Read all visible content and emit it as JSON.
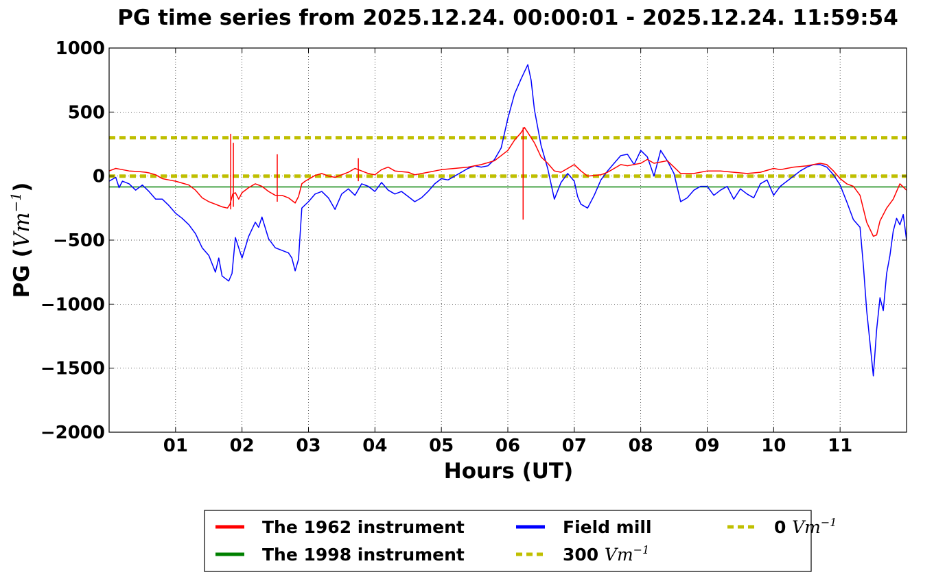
{
  "chart_data": {
    "type": "line",
    "title": "PG time series from 2025.12.24. 00:00:01 - 2025.12.24. 11:59:54",
    "xlabel": "Hours (UT)",
    "ylabel_main": "PG (",
    "ylabel_unit": "Vm",
    "ylabel_exp": "−1",
    "ylabel_close": ")",
    "xlim": [
      0,
      12
    ],
    "ylim": [
      -2000,
      1000
    ],
    "grid": true,
    "legend_position": "bottom-center, below plot",
    "x_ticks": [
      {
        "value": 1,
        "label": "01"
      },
      {
        "value": 2,
        "label": "02"
      },
      {
        "value": 3,
        "label": "03"
      },
      {
        "value": 4,
        "label": "04"
      },
      {
        "value": 5,
        "label": "05"
      },
      {
        "value": 6,
        "label": "06"
      },
      {
        "value": 7,
        "label": "07"
      },
      {
        "value": 8,
        "label": "08"
      },
      {
        "value": 9,
        "label": "09"
      },
      {
        "value": 10,
        "label": "10"
      },
      {
        "value": 11,
        "label": "11"
      }
    ],
    "y_ticks": [
      {
        "value": 1000,
        "label": "1000"
      },
      {
        "value": 500,
        "label": "500"
      },
      {
        "value": 0,
        "label": "0"
      },
      {
        "value": -500,
        "label": "−500"
      },
      {
        "value": -1000,
        "label": "−1000"
      },
      {
        "value": -1500,
        "label": "−1500"
      },
      {
        "value": -2000,
        "label": "−2000"
      }
    ],
    "series": [
      {
        "name": "The 1962 instrument",
        "color": "#ff0000",
        "style": "solid",
        "points": [
          [
            0.0,
            40
          ],
          [
            0.1,
            60
          ],
          [
            0.2,
            50
          ],
          [
            0.3,
            40
          ],
          [
            0.45,
            35
          ],
          [
            0.55,
            30
          ],
          [
            0.6,
            25
          ],
          [
            0.7,
            10
          ],
          [
            0.8,
            -20
          ],
          [
            0.9,
            -30
          ],
          [
            1.0,
            -40
          ],
          [
            1.1,
            -55
          ],
          [
            1.2,
            -70
          ],
          [
            1.3,
            -110
          ],
          [
            1.4,
            -170
          ],
          [
            1.5,
            -200
          ],
          [
            1.6,
            -220
          ],
          [
            1.7,
            -240
          ],
          [
            1.78,
            -250
          ],
          [
            1.82,
            -220
          ],
          [
            1.86,
            -140
          ],
          [
            1.9,
            -130
          ],
          [
            1.95,
            -180
          ],
          [
            2.0,
            -130
          ],
          [
            2.1,
            -90
          ],
          [
            2.2,
            -60
          ],
          [
            2.3,
            -80
          ],
          [
            2.4,
            -120
          ],
          [
            2.5,
            -150
          ],
          [
            2.6,
            -150
          ],
          [
            2.7,
            -170
          ],
          [
            2.8,
            -210
          ],
          [
            2.85,
            -160
          ],
          [
            2.9,
            -60
          ],
          [
            2.95,
            -40
          ],
          [
            3.1,
            5
          ],
          [
            3.2,
            20
          ],
          [
            3.3,
            0
          ],
          [
            3.4,
            -10
          ],
          [
            3.5,
            10
          ],
          [
            3.6,
            30
          ],
          [
            3.7,
            60
          ],
          [
            3.8,
            40
          ],
          [
            3.9,
            20
          ],
          [
            4.0,
            10
          ],
          [
            4.1,
            50
          ],
          [
            4.2,
            70
          ],
          [
            4.3,
            40
          ],
          [
            4.5,
            30
          ],
          [
            4.6,
            10
          ],
          [
            4.8,
            30
          ],
          [
            5.0,
            50
          ],
          [
            5.2,
            60
          ],
          [
            5.4,
            70
          ],
          [
            5.6,
            90
          ],
          [
            5.8,
            120
          ],
          [
            6.0,
            200
          ],
          [
            6.1,
            280
          ],
          [
            6.2,
            340
          ],
          [
            6.25,
            380
          ],
          [
            6.3,
            340
          ],
          [
            6.4,
            260
          ],
          [
            6.5,
            150
          ],
          [
            6.6,
            100
          ],
          [
            6.7,
            40
          ],
          [
            6.8,
            30
          ],
          [
            6.9,
            60
          ],
          [
            7.0,
            90
          ],
          [
            7.1,
            40
          ],
          [
            7.2,
            0
          ],
          [
            7.4,
            10
          ],
          [
            7.5,
            30
          ],
          [
            7.7,
            90
          ],
          [
            7.8,
            80
          ],
          [
            8.0,
            100
          ],
          [
            8.1,
            130
          ],
          [
            8.2,
            100
          ],
          [
            8.4,
            120
          ],
          [
            8.5,
            70
          ],
          [
            8.6,
            20
          ],
          [
            8.8,
            20
          ],
          [
            9.0,
            40
          ],
          [
            9.2,
            40
          ],
          [
            9.4,
            30
          ],
          [
            9.6,
            20
          ],
          [
            9.8,
            30
          ],
          [
            10.0,
            60
          ],
          [
            10.1,
            50
          ],
          [
            10.3,
            70
          ],
          [
            10.5,
            80
          ],
          [
            10.7,
            100
          ],
          [
            10.8,
            90
          ],
          [
            10.9,
            40
          ],
          [
            11.0,
            -20
          ],
          [
            11.1,
            -60
          ],
          [
            11.2,
            -80
          ],
          [
            11.3,
            -150
          ],
          [
            11.4,
            -360
          ],
          [
            11.5,
            -470
          ],
          [
            11.55,
            -460
          ],
          [
            11.6,
            -350
          ],
          [
            11.7,
            -250
          ],
          [
            11.8,
            -180
          ],
          [
            11.9,
            -60
          ],
          [
            12.0,
            -110
          ]
        ],
        "spikes": [
          [
            1.83,
            -260,
            330
          ],
          [
            1.87,
            -240,
            260
          ],
          [
            2.53,
            -200,
            170
          ],
          [
            3.75,
            -40,
            140
          ],
          [
            6.23,
            -340,
            380
          ]
        ]
      },
      {
        "name": "The 1998 instrument",
        "color": "#008000",
        "style": "solid",
        "points": [
          [
            0,
            -85
          ],
          [
            12,
            -85
          ]
        ]
      },
      {
        "name": "Field mill",
        "color": "#0000ff",
        "style": "solid",
        "points": [
          [
            0.0,
            -40
          ],
          [
            0.1,
            -10
          ],
          [
            0.15,
            -90
          ],
          [
            0.2,
            -40
          ],
          [
            0.3,
            -60
          ],
          [
            0.4,
            -110
          ],
          [
            0.5,
            -70
          ],
          [
            0.6,
            -120
          ],
          [
            0.7,
            -180
          ],
          [
            0.8,
            -180
          ],
          [
            0.9,
            -230
          ],
          [
            1.0,
            -290
          ],
          [
            1.1,
            -330
          ],
          [
            1.2,
            -380
          ],
          [
            1.3,
            -450
          ],
          [
            1.4,
            -560
          ],
          [
            1.5,
            -620
          ],
          [
            1.6,
            -750
          ],
          [
            1.65,
            -640
          ],
          [
            1.7,
            -780
          ],
          [
            1.8,
            -820
          ],
          [
            1.85,
            -760
          ],
          [
            1.9,
            -480
          ],
          [
            2.0,
            -640
          ],
          [
            2.1,
            -470
          ],
          [
            2.2,
            -360
          ],
          [
            2.25,
            -400
          ],
          [
            2.3,
            -320
          ],
          [
            2.4,
            -490
          ],
          [
            2.5,
            -560
          ],
          [
            2.6,
            -580
          ],
          [
            2.7,
            -600
          ],
          [
            2.75,
            -640
          ],
          [
            2.8,
            -740
          ],
          [
            2.85,
            -650
          ],
          [
            2.9,
            -250
          ],
          [
            3.0,
            -200
          ],
          [
            3.1,
            -140
          ],
          [
            3.2,
            -120
          ],
          [
            3.3,
            -170
          ],
          [
            3.4,
            -260
          ],
          [
            3.5,
            -140
          ],
          [
            3.6,
            -100
          ],
          [
            3.7,
            -150
          ],
          [
            3.8,
            -60
          ],
          [
            3.9,
            -80
          ],
          [
            4.0,
            -120
          ],
          [
            4.1,
            -50
          ],
          [
            4.2,
            -110
          ],
          [
            4.3,
            -140
          ],
          [
            4.4,
            -120
          ],
          [
            4.5,
            -160
          ],
          [
            4.6,
            -200
          ],
          [
            4.7,
            -170
          ],
          [
            4.8,
            -120
          ],
          [
            4.9,
            -60
          ],
          [
            5.0,
            -20
          ],
          [
            5.1,
            -30
          ],
          [
            5.2,
            0
          ],
          [
            5.3,
            30
          ],
          [
            5.4,
            60
          ],
          [
            5.5,
            80
          ],
          [
            5.6,
            70
          ],
          [
            5.7,
            80
          ],
          [
            5.8,
            130
          ],
          [
            5.9,
            220
          ],
          [
            6.0,
            450
          ],
          [
            6.1,
            640
          ],
          [
            6.2,
            760
          ],
          [
            6.3,
            870
          ],
          [
            6.35,
            750
          ],
          [
            6.4,
            520
          ],
          [
            6.5,
            240
          ],
          [
            6.6,
            60
          ],
          [
            6.7,
            -180
          ],
          [
            6.8,
            -50
          ],
          [
            6.9,
            20
          ],
          [
            7.0,
            -40
          ],
          [
            7.05,
            -160
          ],
          [
            7.1,
            -220
          ],
          [
            7.2,
            -250
          ],
          [
            7.3,
            -150
          ],
          [
            7.4,
            -30
          ],
          [
            7.5,
            40
          ],
          [
            7.6,
            100
          ],
          [
            7.7,
            160
          ],
          [
            7.8,
            170
          ],
          [
            7.9,
            90
          ],
          [
            8.0,
            200
          ],
          [
            8.1,
            150
          ],
          [
            8.2,
            0
          ],
          [
            8.3,
            200
          ],
          [
            8.4,
            120
          ],
          [
            8.5,
            20
          ],
          [
            8.6,
            -200
          ],
          [
            8.7,
            -170
          ],
          [
            8.8,
            -110
          ],
          [
            8.9,
            -80
          ],
          [
            9.0,
            -80
          ],
          [
            9.1,
            -150
          ],
          [
            9.2,
            -110
          ],
          [
            9.3,
            -80
          ],
          [
            9.4,
            -180
          ],
          [
            9.5,
            -100
          ],
          [
            9.6,
            -140
          ],
          [
            9.7,
            -170
          ],
          [
            9.8,
            -60
          ],
          [
            9.9,
            -30
          ],
          [
            10.0,
            -150
          ],
          [
            10.1,
            -80
          ],
          [
            10.2,
            -40
          ],
          [
            10.3,
            0
          ],
          [
            10.4,
            40
          ],
          [
            10.5,
            70
          ],
          [
            10.6,
            90
          ],
          [
            10.7,
            90
          ],
          [
            10.8,
            70
          ],
          [
            10.9,
            10
          ],
          [
            11.0,
            -70
          ],
          [
            11.1,
            -200
          ],
          [
            11.2,
            -340
          ],
          [
            11.3,
            -400
          ],
          [
            11.35,
            -700
          ],
          [
            11.4,
            -1050
          ],
          [
            11.45,
            -1300
          ],
          [
            11.5,
            -1560
          ],
          [
            11.55,
            -1200
          ],
          [
            11.6,
            -950
          ],
          [
            11.65,
            -1050
          ],
          [
            11.7,
            -760
          ],
          [
            11.75,
            -620
          ],
          [
            11.8,
            -430
          ],
          [
            11.85,
            -330
          ],
          [
            11.9,
            -380
          ],
          [
            11.95,
            -300
          ],
          [
            12.0,
            -500
          ]
        ]
      },
      {
        "name": "300 Vm⁻¹",
        "color": "#bfbf00",
        "style": "dashed",
        "points": [
          [
            0,
            300
          ],
          [
            12,
            300
          ]
        ]
      },
      {
        "name": "0 Vm⁻¹",
        "color": "#bfbf00",
        "style": "dashed",
        "points": [
          [
            0,
            0
          ],
          [
            12,
            0
          ]
        ]
      }
    ],
    "legend": [
      {
        "label": "The 1962 instrument",
        "color": "#ff0000",
        "style": "solid",
        "col": 0,
        "row": 0
      },
      {
        "label": "The 1998 instrument",
        "color": "#008000",
        "style": "solid",
        "col": 0,
        "row": 1
      },
      {
        "label": "Field mill",
        "color": "#0000ff",
        "style": "solid",
        "col": 1,
        "row": 0
      },
      {
        "label_num": "300",
        "label_unit": "Vm",
        "label_exp": "−1",
        "color": "#bfbf00",
        "style": "dashed",
        "col": 1,
        "row": 1
      },
      {
        "label_num": "0",
        "label_unit": "Vm",
        "label_exp": "−1",
        "color": "#bfbf00",
        "style": "dashed",
        "col": 2,
        "row": 0
      }
    ]
  }
}
